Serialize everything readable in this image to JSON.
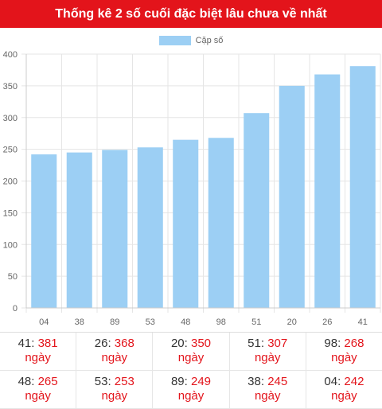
{
  "header": {
    "title": "Thống kê 2 số cuối đặc biệt lâu chưa về nhất"
  },
  "colors": {
    "accent": "#e3141b",
    "bar": "#9ccff4"
  },
  "chart_data": {
    "type": "bar",
    "legend": "Cặp số",
    "categories": [
      "04",
      "38",
      "89",
      "53",
      "48",
      "98",
      "51",
      "20",
      "26",
      "41"
    ],
    "series": [
      {
        "name": "Cặp số",
        "values": [
          242,
          245,
          249,
          253,
          265,
          268,
          307,
          350,
          368,
          381
        ]
      }
    ],
    "ylim": [
      0,
      400
    ],
    "yticks": [
      0,
      50,
      100,
      150,
      200,
      250,
      300,
      350,
      400
    ],
    "grid": true,
    "legend_position": "top"
  },
  "stats": {
    "unit": "ngày",
    "rows": [
      [
        {
          "pair": "41",
          "days": "381"
        },
        {
          "pair": "26",
          "days": "368"
        },
        {
          "pair": "20",
          "days": "350"
        },
        {
          "pair": "51",
          "days": "307"
        },
        {
          "pair": "98",
          "days": "268"
        }
      ],
      [
        {
          "pair": "48",
          "days": "265"
        },
        {
          "pair": "53",
          "days": "253"
        },
        {
          "pair": "89",
          "days": "249"
        },
        {
          "pair": "38",
          "days": "245"
        },
        {
          "pair": "04",
          "days": "242"
        }
      ]
    ]
  }
}
